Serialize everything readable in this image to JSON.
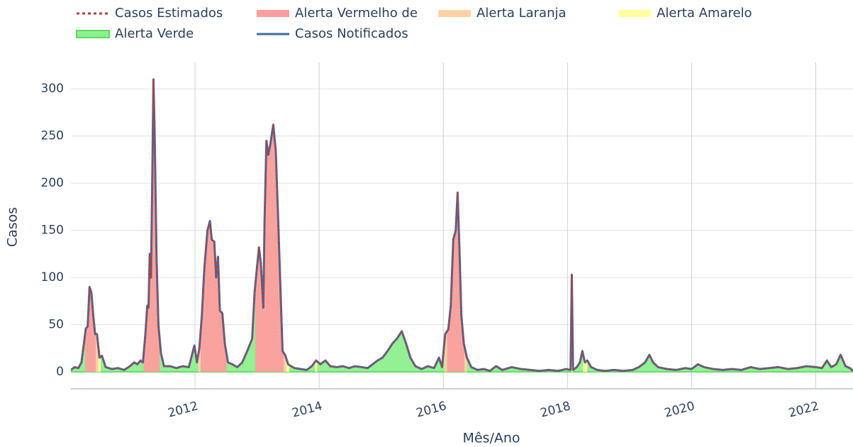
{
  "chart_data": {
    "type": "line",
    "x_label": "Mês/Ano",
    "y_label": "Casos",
    "xlim": [
      2010.0,
      2022.6
    ],
    "xticks": [
      2012,
      2014,
      2016,
      2018,
      2020,
      2022
    ],
    "ylim": [
      -18,
      328
    ],
    "yticks": [
      0,
      50,
      100,
      150,
      200,
      250,
      300
    ],
    "grid": true,
    "x": [
      2010.0,
      2010.06,
      2010.12,
      2010.17,
      2010.21,
      2010.24,
      2010.27,
      2010.3,
      2010.33,
      2010.36,
      2010.39,
      2010.42,
      2010.46,
      2010.5,
      2010.56,
      2010.66,
      2010.76,
      2010.86,
      2010.95,
      2011.02,
      2011.07,
      2011.12,
      2011.16,
      2011.2,
      2011.23,
      2011.25,
      2011.27,
      2011.29,
      2011.31,
      2011.33,
      2011.35,
      2011.38,
      2011.41,
      2011.45,
      2011.5,
      2011.6,
      2011.7,
      2011.8,
      2011.9,
      2011.99,
      2012.03,
      2012.07,
      2012.11,
      2012.15,
      2012.2,
      2012.24,
      2012.27,
      2012.31,
      2012.34,
      2012.37,
      2012.4,
      2012.44,
      2012.48,
      2012.53,
      2012.6,
      2012.68,
      2012.76,
      2012.84,
      2012.92,
      2012.96,
      2013.03,
      2013.06,
      2013.1,
      2013.12,
      2013.15,
      2013.18,
      2013.21,
      2013.26,
      2013.3,
      2013.34,
      2013.38,
      2013.41,
      2013.45,
      2013.5,
      2013.6,
      2013.7,
      2013.8,
      2013.88,
      2013.95,
      2014.02,
      2014.1,
      2014.18,
      2014.28,
      2014.38,
      2014.48,
      2014.58,
      2014.68,
      2014.78,
      2014.86,
      2014.94,
      2015.02,
      2015.1,
      2015.18,
      2015.25,
      2015.33,
      2015.4,
      2015.47,
      2015.55,
      2015.65,
      2015.75,
      2015.85,
      2015.93,
      2015.98,
      2016.03,
      2016.08,
      2016.12,
      2016.16,
      2016.2,
      2016.23,
      2016.26,
      2016.29,
      2016.33,
      2016.38,
      2016.45,
      2016.55,
      2016.65,
      2016.75,
      2016.85,
      2016.95,
      2017.1,
      2017.25,
      2017.4,
      2017.55,
      2017.7,
      2017.85,
      2017.98,
      2018.05,
      2018.07,
      2018.09,
      2018.15,
      2018.2,
      2018.24,
      2018.28,
      2018.32,
      2018.38,
      2018.48,
      2018.6,
      2018.75,
      2018.9,
      2019.05,
      2019.15,
      2019.25,
      2019.32,
      2019.38,
      2019.46,
      2019.6,
      2019.75,
      2019.9,
      2020.0,
      2020.1,
      2020.2,
      2020.35,
      2020.5,
      2020.65,
      2020.8,
      2020.95,
      2021.1,
      2021.25,
      2021.4,
      2021.55,
      2021.7,
      2021.85,
      2022.0,
      2022.1,
      2022.18,
      2022.25,
      2022.33,
      2022.4,
      2022.48,
      2022.55,
      2022.6
    ],
    "series": [
      {
        "name": "Casos Estimados",
        "color": "#b0413e",
        "style": "dotted",
        "values": [
          2,
          5,
          4,
          10,
          30,
          46,
          48,
          90,
          84,
          60,
          40,
          40,
          15,
          17,
          5,
          3,
          4,
          2,
          6,
          10,
          8,
          12,
          10,
          40,
          70,
          68,
          125,
          100,
          200,
          310,
          250,
          120,
          50,
          20,
          6,
          6,
          4,
          6,
          5,
          28,
          10,
          25,
          60,
          110,
          150,
          160,
          140,
          138,
          100,
          122,
          65,
          62,
          30,
          10,
          8,
          5,
          10,
          22,
          35,
          85,
          132,
          115,
          68,
          160,
          245,
          230,
          240,
          262,
          235,
          160,
          80,
          22,
          18,
          8,
          4,
          3,
          2,
          6,
          12,
          8,
          12,
          6,
          5,
          6,
          4,
          6,
          5,
          4,
          8,
          12,
          15,
          22,
          30,
          35,
          43,
          30,
          15,
          6,
          3,
          6,
          4,
          15,
          5,
          40,
          45,
          70,
          140,
          150,
          190,
          130,
          60,
          30,
          15,
          5,
          2,
          3,
          1,
          6,
          2,
          5,
          3,
          2,
          1,
          2,
          1,
          3,
          2,
          103,
          2,
          5,
          10,
          22,
          10,
          12,
          5,
          2,
          1,
          2,
          1,
          2,
          5,
          10,
          18,
          10,
          5,
          3,
          2,
          4,
          3,
          8,
          5,
          3,
          2,
          3,
          2,
          5,
          3,
          4,
          5,
          3,
          4,
          6,
          5,
          4,
          12,
          5,
          8,
          18,
          6,
          4,
          1
        ]
      },
      {
        "name": "Alerta Vermelho de",
        "color": "#ff9e9e",
        "x_ranges": [
          [
            2010.23,
            2010.4
          ],
          [
            2011.17,
            2011.43
          ],
          [
            2012.09,
            2012.51
          ],
          [
            2012.97,
            2013.43
          ],
          [
            2016.06,
            2016.34
          ]
        ]
      },
      {
        "name": "Alerta Laranja",
        "color": "#ffd2a6",
        "x_ranges": [
          [
            2010.4,
            2010.44
          ],
          [
            2012.05,
            2012.09
          ],
          [
            2013.43,
            2013.47
          ],
          [
            2016.02,
            2016.06
          ],
          [
            2016.34,
            2016.38
          ]
        ]
      },
      {
        "name": "Alerta Amarelo",
        "color": "#ffff9e",
        "x_ranges": [
          [
            2010.44,
            2010.48
          ],
          [
            2013.47,
            2013.52
          ],
          [
            2013.93,
            2013.97
          ],
          [
            2018.06,
            2018.09
          ],
          [
            2018.25,
            2018.32
          ]
        ]
      },
      {
        "name": "Alerta Verde",
        "color": "#8ef08e",
        "x_ranges": [
          [
            2010.0,
            2022.6
          ]
        ]
      },
      {
        "name": "Casos Notificados",
        "color": "#3d6ea5",
        "style": "solid",
        "values": [
          2,
          5,
          4,
          10,
          30,
          46,
          48,
          90,
          84,
          60,
          40,
          40,
          15,
          17,
          5,
          3,
          4,
          2,
          6,
          10,
          8,
          12,
          10,
          40,
          70,
          68,
          125,
          100,
          200,
          310,
          250,
          120,
          50,
          20,
          6,
          6,
          4,
          6,
          5,
          28,
          10,
          25,
          60,
          110,
          150,
          160,
          140,
          138,
          100,
          122,
          65,
          62,
          30,
          10,
          8,
          5,
          10,
          22,
          35,
          85,
          132,
          115,
          68,
          160,
          245,
          230,
          240,
          262,
          235,
          160,
          80,
          22,
          18,
          8,
          4,
          3,
          2,
          6,
          12,
          8,
          12,
          6,
          5,
          6,
          4,
          6,
          5,
          4,
          8,
          12,
          15,
          22,
          30,
          35,
          43,
          30,
          15,
          6,
          3,
          6,
          4,
          15,
          5,
          40,
          45,
          70,
          140,
          150,
          190,
          130,
          60,
          30,
          15,
          5,
          2,
          3,
          1,
          6,
          2,
          5,
          3,
          2,
          1,
          2,
          1,
          3,
          2,
          103,
          2,
          5,
          10,
          22,
          10,
          12,
          5,
          2,
          1,
          2,
          1,
          2,
          5,
          10,
          18,
          10,
          5,
          3,
          2,
          4,
          3,
          8,
          5,
          3,
          2,
          3,
          2,
          5,
          3,
          4,
          5,
          3,
          4,
          6,
          5,
          4,
          12,
          5,
          8,
          18,
          6,
          4,
          1
        ]
      }
    ]
  }
}
